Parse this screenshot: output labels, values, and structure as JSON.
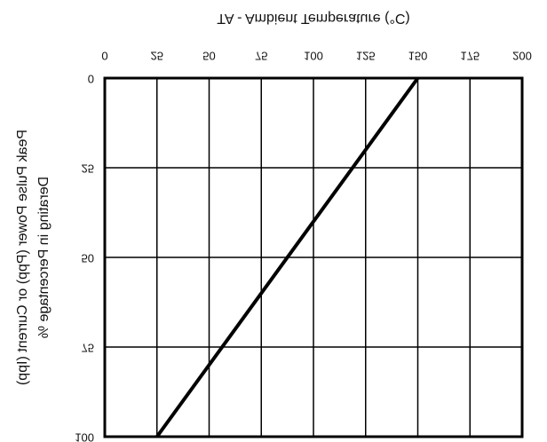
{
  "chart_data": {
    "type": "line",
    "x_label": "TA - Ambient Temperature (°C)",
    "y_label": [
      "Peak Pulse Power (Ppp) or Current (Ipp)",
      "Derating in Percentage %"
    ],
    "x": [
      25,
      150
    ],
    "series": [
      {
        "name": "Derating",
        "color": "#000000",
        "values": [
          100,
          0
        ]
      }
    ],
    "xlim": [
      0,
      200
    ],
    "xticks": [
      0,
      25,
      50,
      75,
      100,
      125,
      150,
      175,
      200
    ],
    "ylim": [
      0,
      100
    ],
    "yticks": [
      0,
      25,
      50,
      75,
      100
    ],
    "grid": true
  }
}
